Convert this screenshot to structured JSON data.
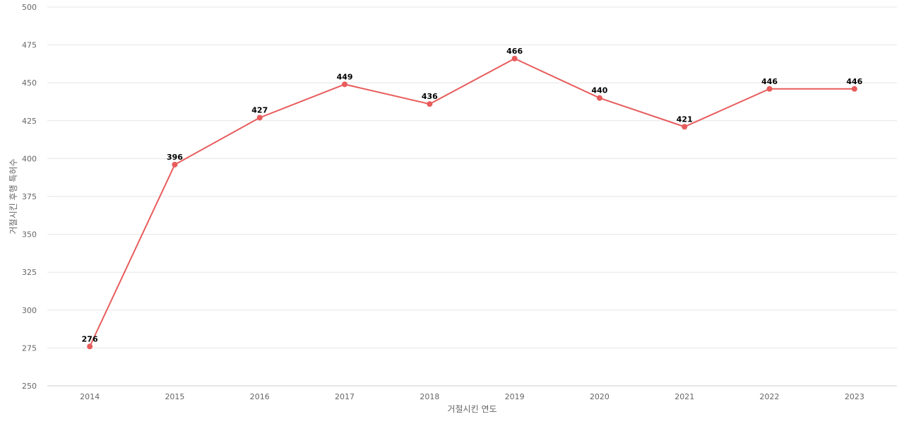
{
  "chart_data": {
    "type": "line",
    "title": "",
    "xlabel": "거절시킨 연도",
    "ylabel": "거절시킨 후행 특허수",
    "categories": [
      "2014",
      "2015",
      "2016",
      "2017",
      "2018",
      "2019",
      "2020",
      "2021",
      "2022",
      "2023"
    ],
    "series": [
      {
        "values": [
          276,
          396,
          427,
          449,
          436,
          466,
          440,
          421,
          446,
          446
        ]
      }
    ],
    "ylim": [
      250,
      500
    ],
    "yticks": [
      250,
      275,
      300,
      325,
      350,
      375,
      400,
      425,
      450,
      475,
      500
    ],
    "grid": true,
    "legend": "none",
    "colors": {
      "line": "#e85c5c",
      "grid": "#e6e6e6",
      "tick_text": "#666666",
      "label_text": "#000000"
    }
  }
}
